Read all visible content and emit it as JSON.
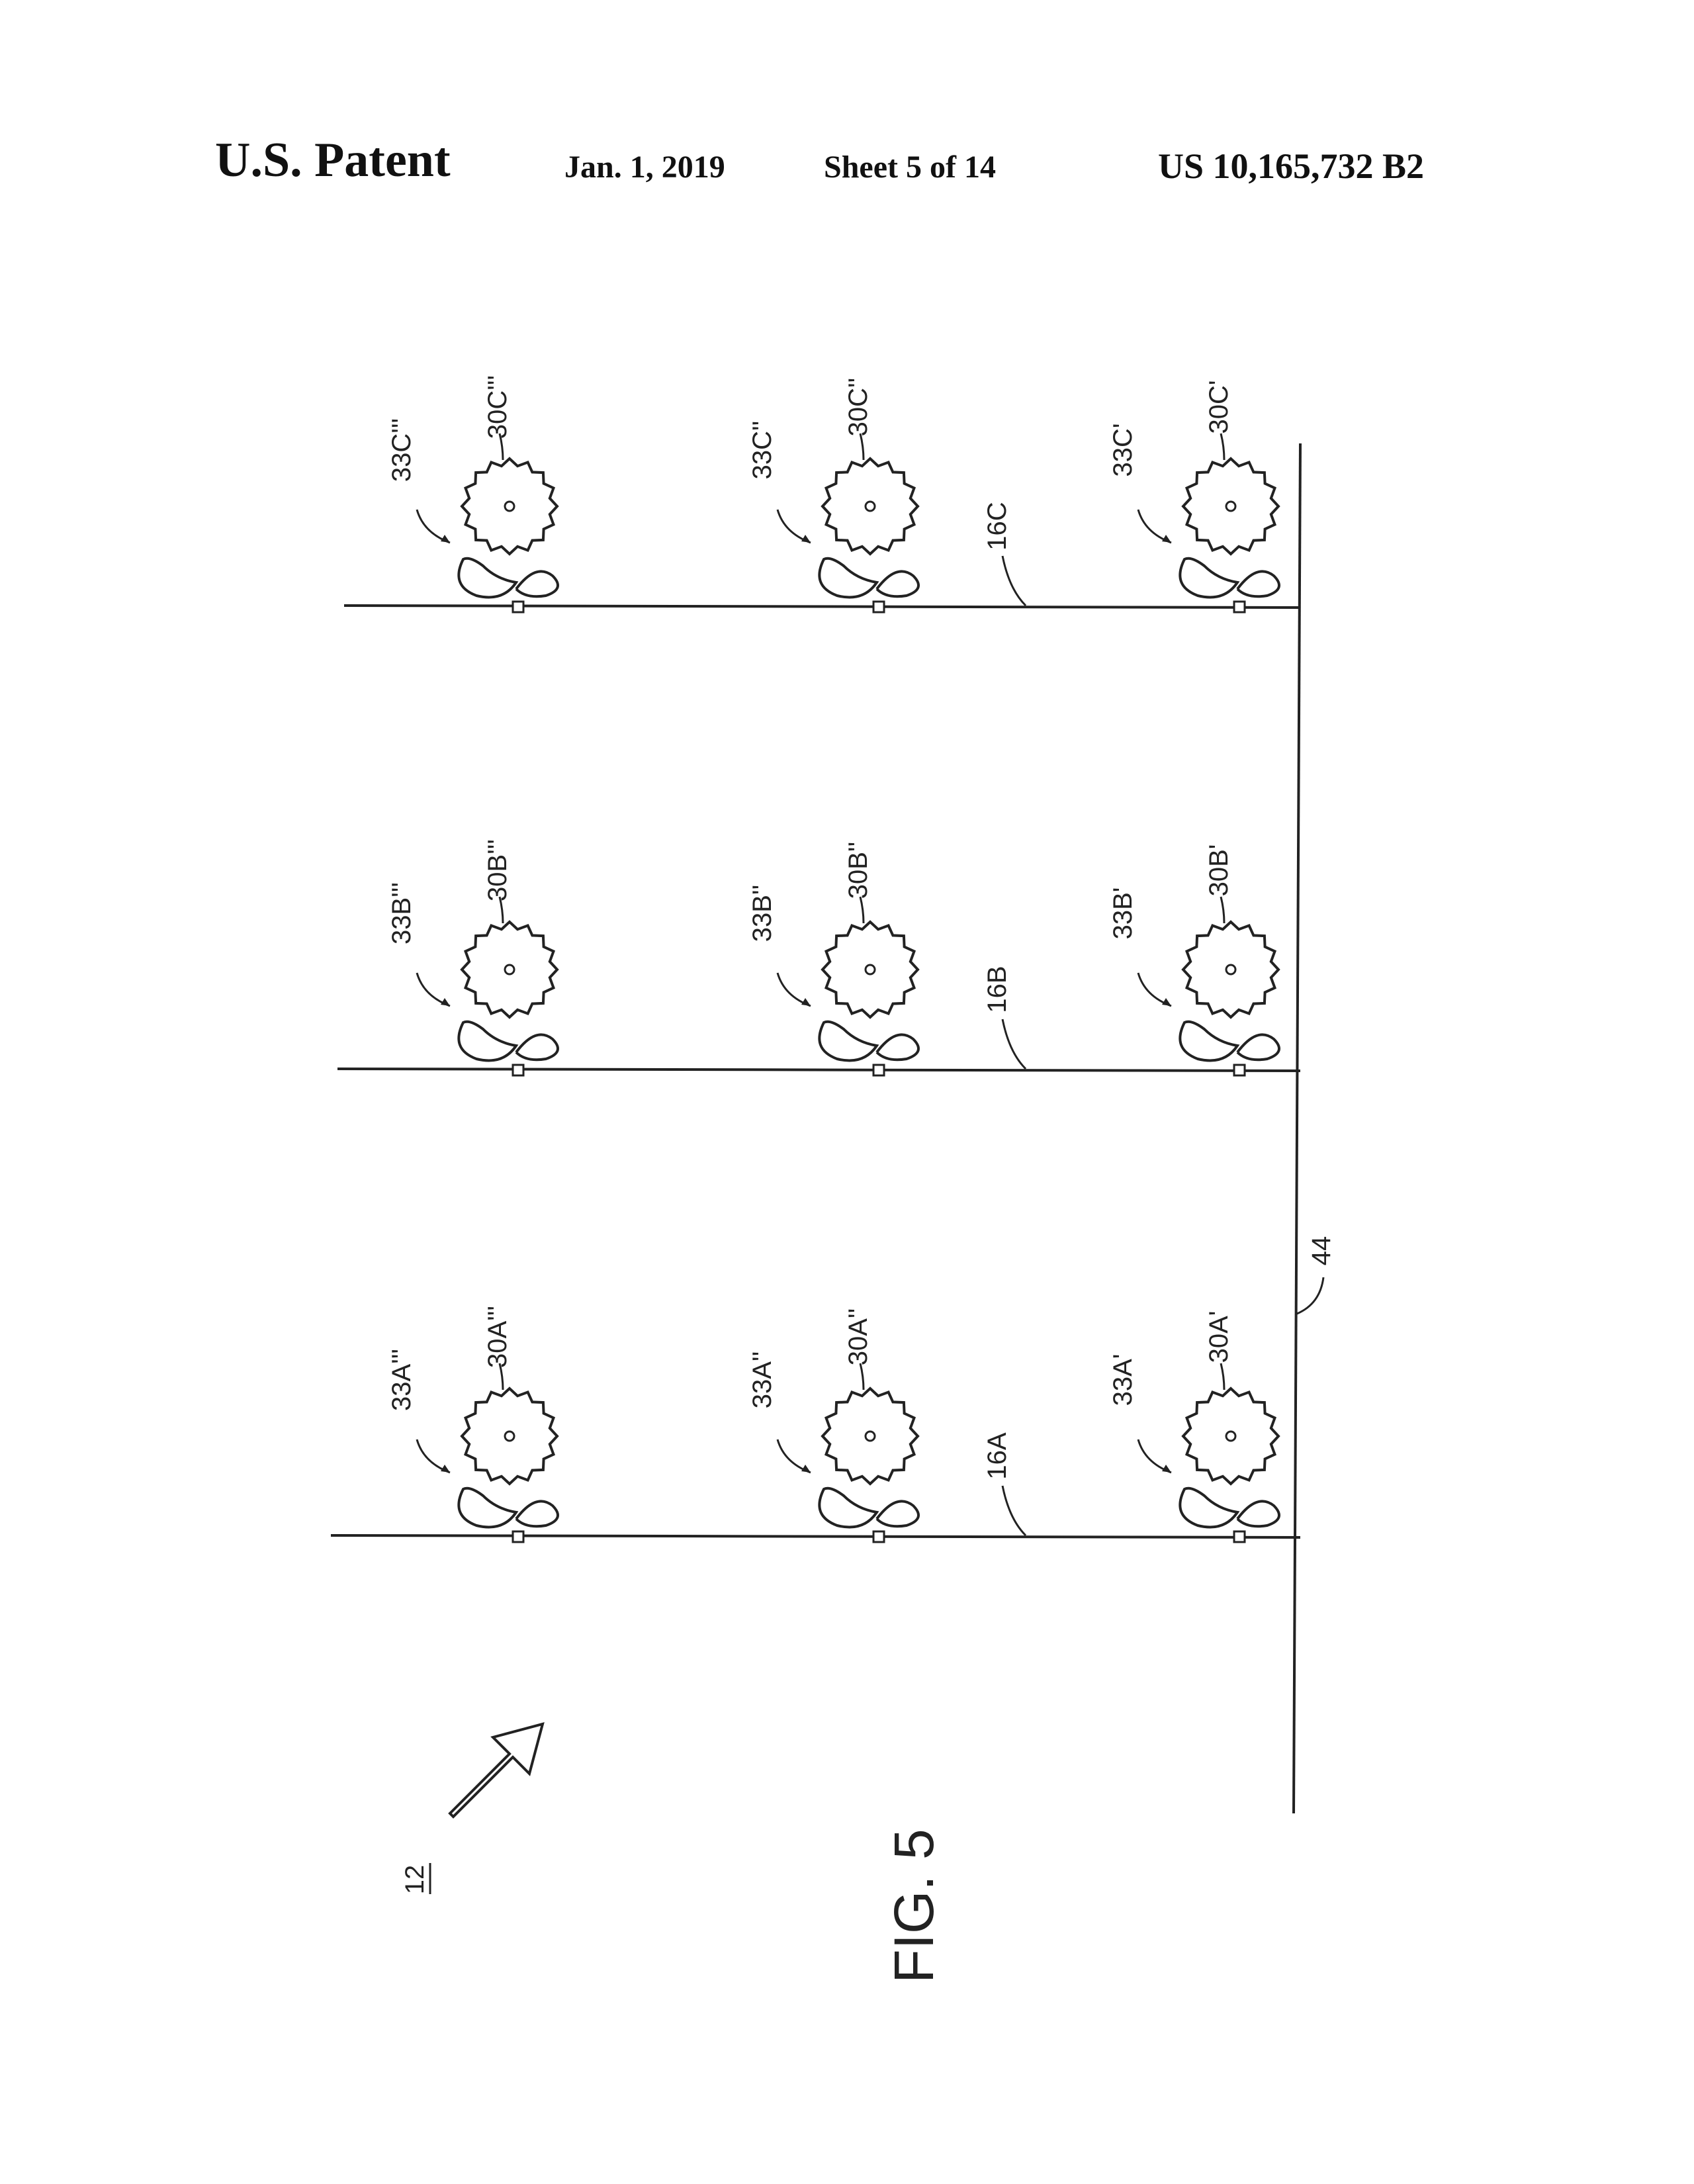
{
  "header": {
    "publication": "U.S. Patent",
    "date": "Jan. 1, 2019",
    "sheet": "Sheet 5 of 14",
    "patent_number": "US 10,165,732 B2"
  },
  "figure": {
    "caption": "FIG. 5",
    "assembly_ref": "12",
    "header_line_ref": "44",
    "rows": [
      {
        "line_ref": "16C",
        "units": [
          {
            "clip": "33C'''",
            "gear": "30C'''"
          },
          {
            "clip": "33C''",
            "gear": "30C''"
          },
          {
            "clip": "33C'",
            "gear": "30C'"
          }
        ]
      },
      {
        "line_ref": "16B",
        "units": [
          {
            "clip": "33B'''",
            "gear": "30B'''"
          },
          {
            "clip": "33B''",
            "gear": "30B''"
          },
          {
            "clip": "33B'",
            "gear": "30B'"
          }
        ]
      },
      {
        "line_ref": "16A",
        "units": [
          {
            "clip": "33A'''",
            "gear": "30A'''"
          },
          {
            "clip": "33A''",
            "gear": "30A''"
          },
          {
            "clip": "33A'",
            "gear": "30A'"
          }
        ]
      }
    ]
  }
}
